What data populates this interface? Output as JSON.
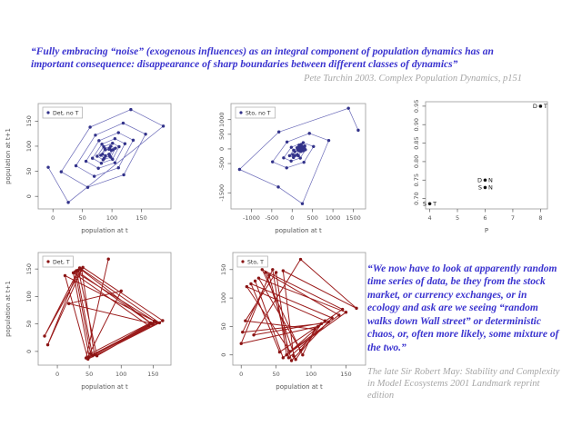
{
  "quotes": {
    "top_text": "“Fully embracing “noise” (exogenous influences) as an integral component of population dynamics has an important consequence: disappearance of sharp boundaries between different classes of dynamics”",
    "top_attribution": "Pete Turchin 2003. Complex Population Dynamics, p151",
    "bottom_text": "“We now have to look at apparently random time series of data, be they from the stock market, or currency exchanges, or in ecology and ask are we seeing “random walks down Wall street” or deterministic chaos, or, often more likely, some mixture of the two.”",
    "bottom_attribution": "The late Sir Robert May: Stability and Complexity in Model Ecosystems 2001 Landmark reprint edition"
  },
  "colors": {
    "quote_blue": "#3a33cf",
    "attribution_gray": "#a6a6a6",
    "blue_point": "#32328a",
    "blue_line": "#6a6ab8",
    "red_point": "#8b1414",
    "red_line": "#9b1c1c",
    "axis_text": "#555555",
    "plot_border": "#999999"
  },
  "chart_data": [
    {
      "type": "line",
      "name": "det-no-t",
      "legend": "Det, no T",
      "color_point": "#32328a",
      "color_line": "#6a6ab8",
      "line_width": 0.7,
      "xlabel": "population at t",
      "ylabel": "population at t+1",
      "xlim": [
        -25,
        200
      ],
      "ylim": [
        -25,
        185
      ],
      "xticks": [
        0,
        50,
        100,
        150
      ],
      "yticks": [
        0,
        50,
        100,
        150
      ],
      "points": [
        [
          -8,
          58
        ],
        [
          26,
          -12
        ],
        [
          187,
          140
        ],
        [
          132,
          173
        ],
        [
          63,
          138
        ],
        [
          14,
          49
        ],
        [
          59,
          18
        ],
        [
          120,
          43
        ],
        [
          157,
          124
        ],
        [
          119,
          146
        ],
        [
          72,
          122
        ],
        [
          39,
          61
        ],
        [
          70,
          40
        ],
        [
          111,
          57
        ],
        [
          136,
          112
        ],
        [
          111,
          127
        ],
        [
          78,
          111
        ],
        [
          56,
          70
        ],
        [
          77,
          56
        ],
        [
          105,
          67
        ],
        [
          122,
          105
        ],
        [
          105,
          115
        ],
        [
          83,
          104
        ],
        [
          67,
          76
        ],
        [
          82,
          66
        ],
        [
          101,
          74
        ],
        [
          112,
          99
        ],
        [
          101,
          106
        ],
        [
          86,
          99
        ],
        [
          75,
          80
        ],
        [
          85,
          73
        ],
        [
          98,
          78
        ],
        [
          106,
          96
        ],
        [
          98,
          100
        ],
        [
          88,
          95
        ],
        [
          81,
          82
        ],
        [
          87,
          76
        ],
        [
          96,
          81
        ],
        [
          102,
          93
        ],
        [
          96,
          96
        ],
        [
          89,
          93
        ],
        [
          84,
          84
        ],
        [
          89,
          81
        ],
        [
          95,
          84
        ],
        [
          99,
          92
        ],
        [
          95,
          94
        ]
      ]
    },
    {
      "type": "line",
      "name": "sto-no-t",
      "legend": "Sto, no T",
      "color_point": "#32328a",
      "color_line": "#6a6ab8",
      "line_width": 0.7,
      "xlabel": "population at t",
      "ylabel": "",
      "xlim": [
        -1500,
        1800
      ],
      "ylim": [
        -2050,
        1550
      ],
      "xticks": [
        -1000,
        -500,
        0,
        500,
        1000,
        1500
      ],
      "yticks": [
        -1500,
        -500,
        0,
        500,
        1000
      ],
      "points": [
        [
          1620,
          640
        ],
        [
          1380,
          1390
        ],
        [
          -325,
          580
        ],
        [
          -1290,
          -700
        ],
        [
          -340,
          -1300
        ],
        [
          250,
          -1870
        ],
        [
          897,
          288
        ],
        [
          423,
          531
        ],
        [
          -126,
          238
        ],
        [
          -481,
          -441
        ],
        [
          -135,
          -647
        ],
        [
          288,
          -456
        ],
        [
          524,
          83
        ],
        [
          271,
          212
        ],
        [
          -20,
          56
        ],
        [
          -209,
          -305
        ],
        [
          -25,
          -414
        ],
        [
          200,
          -313
        ],
        [
          325,
          -26
        ],
        [
          191,
          43
        ],
        [
          36,
          -41
        ],
        [
          -64,
          -232
        ],
        [
          33,
          -291
        ],
        [
          153,
          -236
        ],
        [
          220,
          -84
        ],
        [
          149,
          -47
        ],
        [
          66,
          -92
        ],
        [
          13,
          -194
        ],
        [
          65,
          -224
        ],
        [
          128,
          -196
        ],
        [
          180,
          20
        ],
        [
          260,
          80
        ],
        [
          140,
          -30
        ],
        [
          300,
          40
        ],
        [
          200,
          110
        ],
        [
          240,
          -20
        ],
        [
          160,
          60
        ],
        [
          280,
          -60
        ],
        [
          120,
          40
        ],
        [
          220,
          150
        ],
        [
          190,
          -70
        ],
        [
          310,
          100
        ],
        [
          230,
          30
        ],
        [
          170,
          130
        ],
        [
          250,
          60
        ]
      ]
    },
    {
      "type": "scatter",
      "name": "parameter-summary",
      "legend": null,
      "color_point": "#111111",
      "color_line": "#111111",
      "xlabel": "P",
      "ylabel": "",
      "xlim": [
        3.85,
        8.25
      ],
      "ylim": [
        0.672,
        0.962
      ],
      "xticks": [
        4,
        5,
        6,
        7,
        8
      ],
      "yticks": [
        0.7,
        0.75,
        0.8,
        0.85,
        0.9,
        0.95
      ],
      "yticklabels": [
        "0.70",
        "0.75",
        "0.80",
        "0.85",
        "0.90",
        "0.95"
      ],
      "points": [],
      "labeled_points": [
        {
          "x": 8,
          "y": 0.95,
          "left": "D",
          "right": "T"
        },
        {
          "x": 6,
          "y": 0.75,
          "left": "D",
          "right": "N"
        },
        {
          "x": 6,
          "y": 0.73,
          "left": "S",
          "right": "N"
        },
        {
          "x": 4,
          "y": 0.686,
          "left": "S",
          "right": "T"
        }
      ]
    },
    {
      "type": "line",
      "name": "det-t",
      "legend": "Det, T",
      "color_point": "#8b1414",
      "color_line": "#9b1c1c",
      "line_width": 1.0,
      "xlabel": "population at t",
      "ylabel": "population at t+1",
      "xlim": [
        -30,
        178
      ],
      "ylim": [
        -25,
        180
      ],
      "xticks": [
        0,
        50,
        100,
        150
      ],
      "yticks": [
        0,
        50,
        100,
        150
      ],
      "points": [
        [
          80,
          168
        ],
        [
          45,
          -12
        ],
        [
          148,
          50
        ],
        [
          30,
          147
        ],
        [
          55,
          -8
        ],
        [
          152,
          55
        ],
        [
          12,
          138
        ],
        [
          48,
          -14
        ],
        [
          160,
          52
        ],
        [
          35,
          152
        ],
        [
          -20,
          28
        ],
        [
          38,
          150
        ],
        [
          58,
          -6
        ],
        [
          143,
          47
        ],
        [
          25,
          143
        ],
        [
          50,
          -10
        ],
        [
          165,
          56
        ],
        [
          40,
          153
        ],
        [
          -15,
          12
        ],
        [
          33,
          148
        ],
        [
          62,
          -8
        ],
        [
          150,
          50
        ],
        [
          18,
          87
        ],
        [
          100,
          110
        ],
        [
          47,
          -12
        ],
        [
          155,
          53
        ],
        [
          28,
          145
        ],
        [
          52,
          -4
        ],
        [
          146,
          52
        ],
        [
          36,
          150
        ]
      ]
    },
    {
      "type": "line",
      "name": "sto-t",
      "legend": "Sto, T",
      "color_point": "#8b1414",
      "color_line": "#9b1c1c",
      "line_width": 1.0,
      "xlabel": "population at t",
      "ylabel": "",
      "xlim": [
        -12,
        178
      ],
      "ylim": [
        -18,
        180
      ],
      "xticks": [
        0,
        50,
        100,
        150
      ],
      "yticks": [
        0,
        50,
        100,
        150
      ],
      "points": [
        [
          20,
          130
        ],
        [
          60,
          -5
        ],
        [
          120,
          60
        ],
        [
          8,
          120
        ],
        [
          70,
          6
        ],
        [
          140,
          70
        ],
        [
          35,
          145
        ],
        [
          78,
          -8
        ],
        [
          115,
          55
        ],
        [
          2,
          40
        ],
        [
          45,
          150
        ],
        [
          65,
          0
        ],
        [
          150,
          75
        ],
        [
          25,
          135
        ],
        [
          85,
          8
        ],
        [
          110,
          50
        ],
        [
          0,
          20
        ],
        [
          40,
          140
        ],
        [
          72,
          -10
        ],
        [
          130,
          65
        ],
        [
          14,
          125
        ],
        [
          55,
          5
        ],
        [
          145,
          80
        ],
        [
          30,
          150
        ],
        [
          88,
          0
        ],
        [
          105,
          45
        ],
        [
          6,
          60
        ],
        [
          50,
          145
        ],
        [
          68,
          -5
        ],
        [
          125,
          58
        ],
        [
          18,
          35
        ],
        [
          85,
          168
        ],
        [
          165,
          82
        ],
        [
          60,
          148
        ],
        [
          75,
          -2
        ]
      ]
    }
  ]
}
